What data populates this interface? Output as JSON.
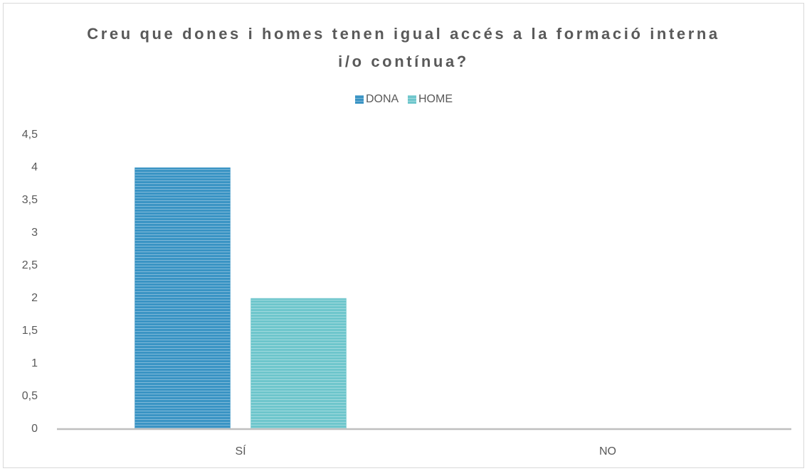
{
  "chart_data": {
    "type": "bar",
    "title": "Creu que dones i homes tenen igual accés a la formació interna i/o contínua?",
    "categories": [
      "SÍ",
      "NO"
    ],
    "series": [
      {
        "name": "DONA",
        "color": "#3a94c4",
        "values": [
          4,
          0
        ]
      },
      {
        "name": "HOME",
        "color": "#6ec6cc",
        "values": [
          2,
          0
        ]
      }
    ],
    "ylim": [
      0,
      4.5
    ],
    "yticks": [
      0,
      {
        "value": 0.5,
        "label": "0,5"
      },
      1,
      {
        "value": 1.5,
        "label": "1,5"
      },
      2,
      {
        "value": 2.5,
        "label": "2,5"
      },
      3,
      {
        "value": 3.5,
        "label": "3,5"
      },
      4,
      {
        "value": 4.5,
        "label": "4,5"
      }
    ],
    "legend": "top"
  }
}
